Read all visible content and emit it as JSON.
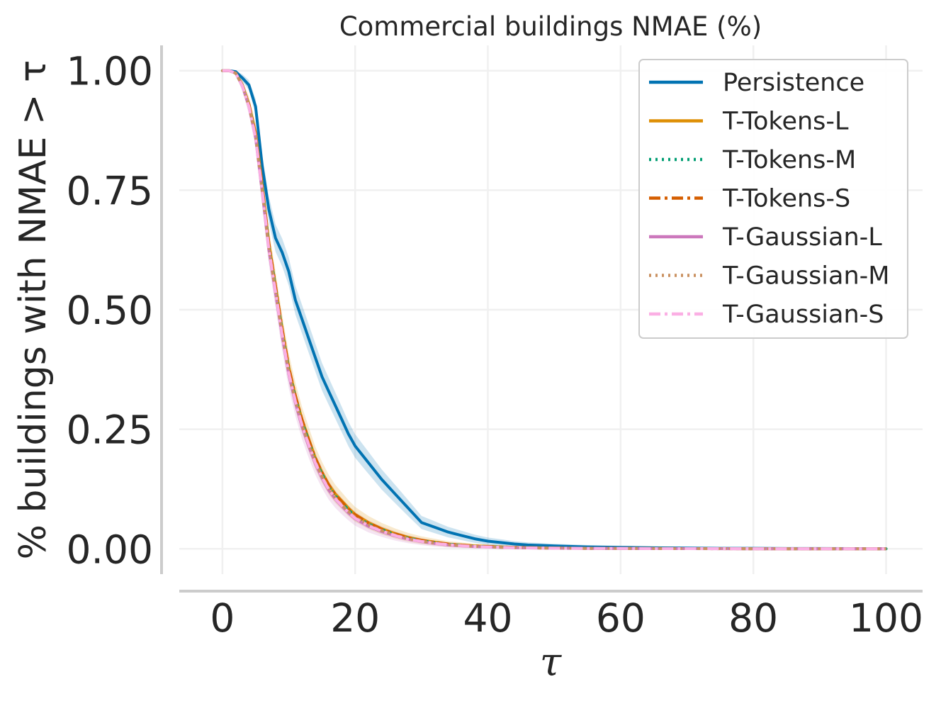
{
  "chart_data": {
    "type": "line",
    "title": "Commercial buildings NMAE (%)",
    "xlabel": "τ",
    "ylabel": "% buildings with NMAE  > τ",
    "xlim": [
      -6.5,
      105.5
    ],
    "ylim": [
      -0.053,
      1.053
    ],
    "xticks": [
      0,
      20,
      40,
      60,
      80,
      100
    ],
    "xtick_labels": [
      "0",
      "20",
      "40",
      "60",
      "80",
      "100"
    ],
    "yticks": [
      0.0,
      0.25,
      0.5,
      0.75,
      1.0
    ],
    "ytick_labels": [
      "0.00",
      "0.25",
      "0.50",
      "0.75",
      "1.00"
    ],
    "grid": true,
    "legend_position": "top-right",
    "x": [
      0,
      1,
      2,
      3,
      4,
      5,
      6,
      7,
      8,
      9,
      10,
      11,
      12,
      13,
      14,
      15,
      16,
      17,
      18,
      19,
      20,
      22,
      24,
      26,
      28,
      30,
      32,
      34,
      36,
      38,
      40,
      42,
      44,
      46,
      48,
      50,
      55,
      60,
      65,
      70,
      75,
      80,
      85,
      90,
      95,
      100
    ],
    "series": [
      {
        "name": "Persistence",
        "color": "#0173b2",
        "dash": "solid",
        "band": true,
        "values": [
          1.0,
          1.0,
          0.998,
          0.985,
          0.97,
          0.925,
          0.8,
          0.71,
          0.65,
          0.62,
          0.58,
          0.52,
          0.48,
          0.44,
          0.4,
          0.36,
          0.33,
          0.3,
          0.27,
          0.24,
          0.215,
          0.18,
          0.145,
          0.115,
          0.085,
          0.055,
          0.045,
          0.035,
          0.028,
          0.021,
          0.016,
          0.013,
          0.01,
          0.008,
          0.007,
          0.006,
          0.004,
          0.003,
          0.002,
          0.0015,
          0.001,
          0.001,
          0.0005,
          0.0005,
          0.0003,
          0.0002
        ]
      },
      {
        "name": "T-Tokens-L",
        "color": "#de8f05",
        "dash": "solid",
        "band": true,
        "values": [
          1.0,
          1.0,
          0.995,
          0.97,
          0.93,
          0.87,
          0.76,
          0.64,
          0.55,
          0.46,
          0.38,
          0.32,
          0.27,
          0.23,
          0.19,
          0.16,
          0.135,
          0.115,
          0.1,
          0.085,
          0.072,
          0.055,
          0.042,
          0.032,
          0.024,
          0.018,
          0.014,
          0.01,
          0.008,
          0.006,
          0.005,
          0.004,
          0.003,
          0.0025,
          0.002,
          0.0015,
          0.001,
          0.0008,
          0.0005,
          0.0004,
          0.0003,
          0.0002,
          0.0001,
          0.0001,
          0.0,
          0.0
        ]
      },
      {
        "name": "T-Tokens-M",
        "color": "#029e73",
        "dash": "dotted",
        "band": false,
        "values": [
          1.0,
          1.0,
          0.995,
          0.97,
          0.928,
          0.865,
          0.755,
          0.635,
          0.545,
          0.455,
          0.375,
          0.315,
          0.265,
          0.225,
          0.186,
          0.156,
          0.131,
          0.111,
          0.096,
          0.081,
          0.069,
          0.052,
          0.04,
          0.03,
          0.022,
          0.017,
          0.013,
          0.0095,
          0.0075,
          0.0055,
          0.0045,
          0.0035,
          0.0028,
          0.0022,
          0.0018,
          0.0014,
          0.001,
          0.0007,
          0.0005,
          0.0004,
          0.0003,
          0.0002,
          0.0001,
          0.0001,
          0.0,
          0.0
        ]
      },
      {
        "name": "T-Tokens-S",
        "color": "#d55e00",
        "dash": "dashdot",
        "band": false,
        "values": [
          1.0,
          1.0,
          0.995,
          0.97,
          0.93,
          0.868,
          0.758,
          0.64,
          0.55,
          0.46,
          0.38,
          0.32,
          0.27,
          0.228,
          0.19,
          0.16,
          0.134,
          0.113,
          0.098,
          0.083,
          0.071,
          0.054,
          0.041,
          0.031,
          0.023,
          0.0175,
          0.0135,
          0.01,
          0.0078,
          0.0058,
          0.0048,
          0.0038,
          0.003,
          0.0024,
          0.0019,
          0.0015,
          0.001,
          0.0008,
          0.0005,
          0.0004,
          0.0003,
          0.0002,
          0.0001,
          0.0001,
          0.0,
          0.0
        ]
      },
      {
        "name": "T-Gaussian-L",
        "color": "#cc78bc",
        "dash": "solid",
        "band": true,
        "values": [
          1.0,
          1.0,
          0.995,
          0.968,
          0.925,
          0.86,
          0.745,
          0.625,
          0.535,
          0.445,
          0.365,
          0.305,
          0.255,
          0.215,
          0.178,
          0.148,
          0.123,
          0.104,
          0.089,
          0.075,
          0.063,
          0.047,
          0.036,
          0.027,
          0.02,
          0.015,
          0.011,
          0.008,
          0.0062,
          0.0046,
          0.0036,
          0.0028,
          0.0022,
          0.0018,
          0.0014,
          0.0011,
          0.0008,
          0.0006,
          0.0004,
          0.0003,
          0.0002,
          0.0001,
          0.0001,
          0.0,
          0.0,
          0.0
        ]
      },
      {
        "name": "T-Gaussian-M",
        "color": "#ca9161",
        "dash": "dotted",
        "band": false,
        "values": [
          1.0,
          1.0,
          0.995,
          0.969,
          0.927,
          0.863,
          0.75,
          0.63,
          0.54,
          0.45,
          0.37,
          0.31,
          0.26,
          0.22,
          0.182,
          0.152,
          0.127,
          0.107,
          0.092,
          0.078,
          0.066,
          0.05,
          0.038,
          0.029,
          0.021,
          0.016,
          0.012,
          0.0088,
          0.0068,
          0.005,
          0.004,
          0.0031,
          0.0025,
          0.002,
          0.0016,
          0.0012,
          0.0009,
          0.0006,
          0.0004,
          0.0003,
          0.0002,
          0.0001,
          0.0001,
          0.0,
          0.0,
          0.0
        ]
      },
      {
        "name": "T-Gaussian-S",
        "color": "#fbafe4",
        "dash": "dashdot",
        "band": false,
        "values": [
          1.0,
          1.0,
          0.995,
          0.968,
          0.925,
          0.86,
          0.748,
          0.628,
          0.538,
          0.448,
          0.368,
          0.308,
          0.258,
          0.218,
          0.18,
          0.15,
          0.125,
          0.105,
          0.09,
          0.076,
          0.064,
          0.048,
          0.037,
          0.028,
          0.02,
          0.0155,
          0.0115,
          0.0085,
          0.0065,
          0.0048,
          0.0038,
          0.003,
          0.0024,
          0.0019,
          0.0015,
          0.0012,
          0.0008,
          0.0006,
          0.0004,
          0.0003,
          0.0002,
          0.0001,
          0.0001,
          0.0,
          0.0,
          0.0
        ]
      }
    ]
  }
}
